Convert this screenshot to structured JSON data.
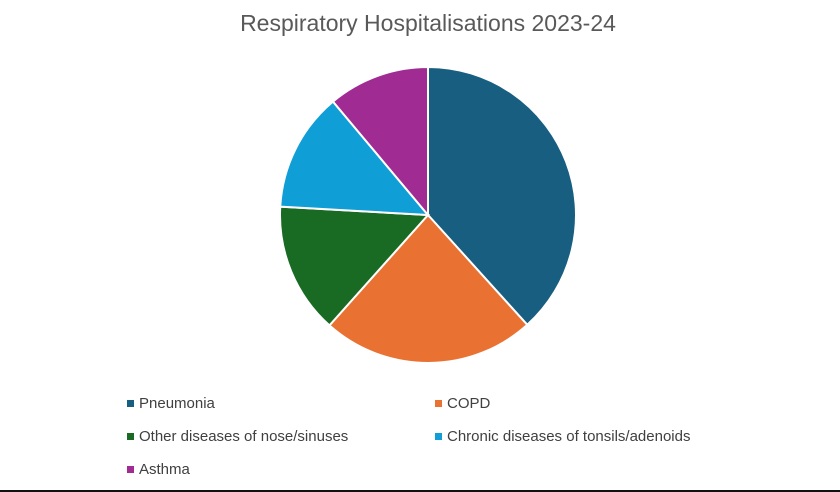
{
  "chart_data": {
    "type": "pie",
    "title": "Respiratory Hospitalisations 2023-24",
    "categories": [
      "Pneumonia",
      "COPD",
      "Other diseases of nose/sinuses",
      "Chronic diseases of tonsils/adenoids",
      "Asthma"
    ],
    "values": [
      38.3,
      23.3,
      14.3,
      13.0,
      11.1
    ],
    "unit": "percent share (estimated from slice angles)",
    "colors": [
      "#175e80",
      "#e97132",
      "#196b24",
      "#0f9ed5",
      "#a02b93"
    ],
    "start_angle_deg": 0,
    "direction": "clockwise",
    "legend_position": "bottom"
  },
  "legend": [
    {
      "label": "Pneumonia",
      "color": "#175e80"
    },
    {
      "label": "COPD",
      "color": "#e97132"
    },
    {
      "label": "Other diseases of nose/sinuses",
      "color": "#196b24"
    },
    {
      "label": "Chronic diseases of tonsils/adenoids",
      "color": "#0f9ed5"
    },
    {
      "label": "Asthma",
      "color": "#a02b93"
    }
  ]
}
